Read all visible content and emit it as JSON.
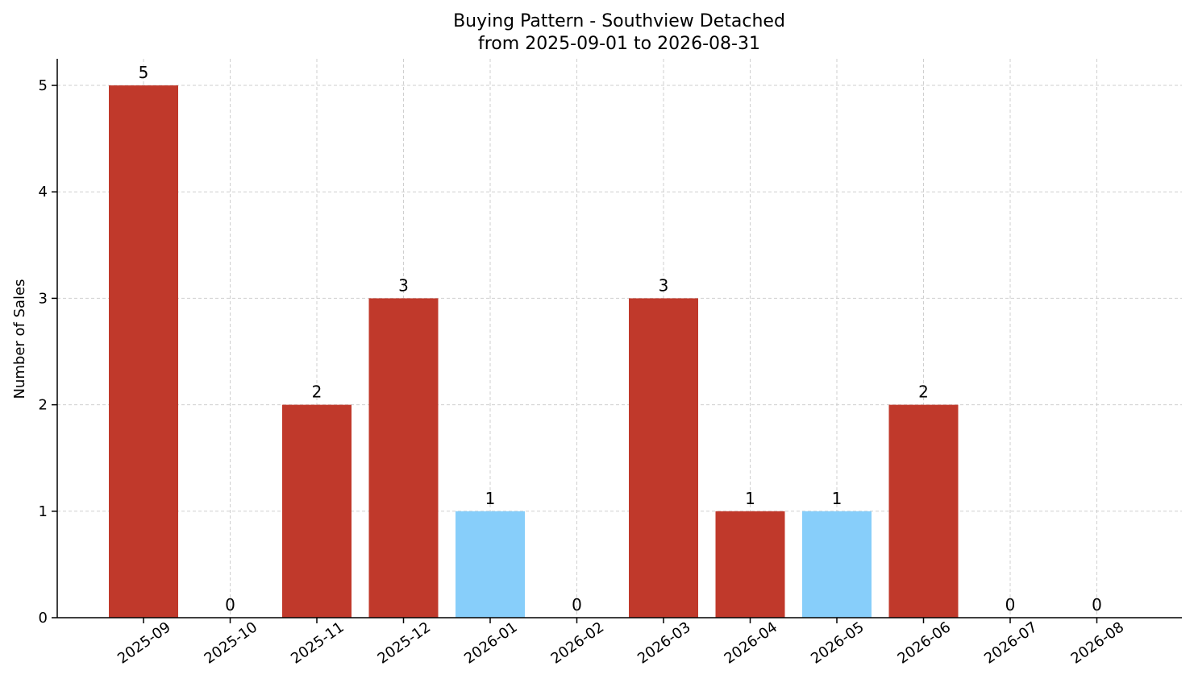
{
  "chart_data": {
    "type": "bar",
    "title": "Buying Pattern - Southview Detached",
    "subtitle": "from 2025-09-01 to 2026-08-31",
    "xlabel": "",
    "ylabel": "Number of Sales",
    "categories": [
      "2025-09",
      "2025-10",
      "2025-11",
      "2025-12",
      "2026-01",
      "2026-02",
      "2026-03",
      "2026-04",
      "2026-05",
      "2026-06",
      "2026-07",
      "2026-08"
    ],
    "values": [
      5,
      0,
      2,
      3,
      1,
      0,
      3,
      1,
      1,
      2,
      0,
      0
    ],
    "bar_colors": [
      "#c0392b",
      "#c0392b",
      "#c0392b",
      "#c0392b",
      "#87cefa",
      "#c0392b",
      "#c0392b",
      "#c0392b",
      "#87cefa",
      "#c0392b",
      "#c0392b",
      "#c0392b"
    ],
    "ylim": [
      0,
      5.25
    ],
    "yticks": [
      0,
      1,
      2,
      3,
      4,
      5
    ],
    "grid": true,
    "data_labels": true
  }
}
